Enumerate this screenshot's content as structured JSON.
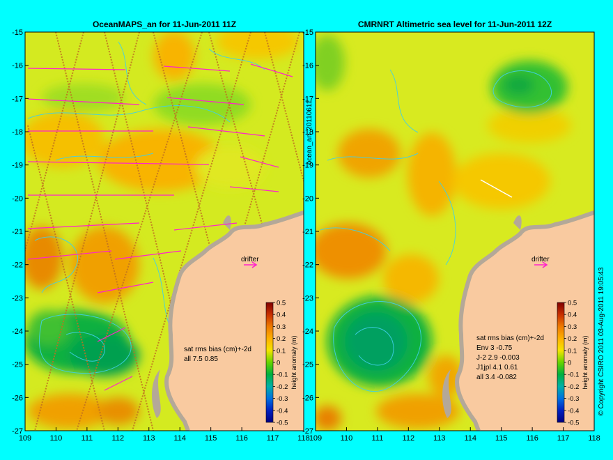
{
  "panels": [
    {
      "title": "OceanMAPS_an for 11-Jun-2011 11Z",
      "bias_title": "sat rms bias (cm)+-2d",
      "bias_rows": [
        "all 7.5 0.85"
      ],
      "drifter_label": "drifter"
    },
    {
      "title": "CMRNRT Altimetric sea level  for 11-Jun-2011 12Z",
      "bias_title": "sat rms bias (cm)+-2d",
      "bias_rows": [
        "Env   3 -0.75",
        "J-2   2.9 -0.003",
        "J1jpl 4.1 0.61",
        "all 3.4 -0.082"
      ],
      "drifter_label": "drifter"
    }
  ],
  "map": {
    "lon_ticks": [
      "109",
      "110",
      "111",
      "112",
      "113",
      "114",
      "115",
      "116",
      "117",
      "118"
    ],
    "lat_ticks": [
      "-15",
      "-16",
      "-17",
      "-18",
      "-19",
      "-20",
      "-21",
      "-22",
      "-23",
      "-24",
      "-25",
      "-26",
      "-27"
    ],
    "lon_range": [
      109,
      118
    ],
    "lat_range": [
      -15,
      -27
    ]
  },
  "colorbar": {
    "label": "height anomaly (m)",
    "ticks": [
      "0.5",
      "0.4",
      "0.3",
      "0.2",
      "0.1",
      "0",
      "-0.1",
      "-0.2",
      "-0.3",
      "-0.4",
      "-0.5"
    ]
  },
  "side_label": "ocean_an_20110611",
  "copyright": "© Copyright CSIRO 2011  03-Aug-2011 19:05:43",
  "colors": {
    "background": "#00ffff",
    "land": "#f9caa0",
    "coast": "#b4a898",
    "contour": "#3fd0e8",
    "vector": "#ff22cc"
  }
}
